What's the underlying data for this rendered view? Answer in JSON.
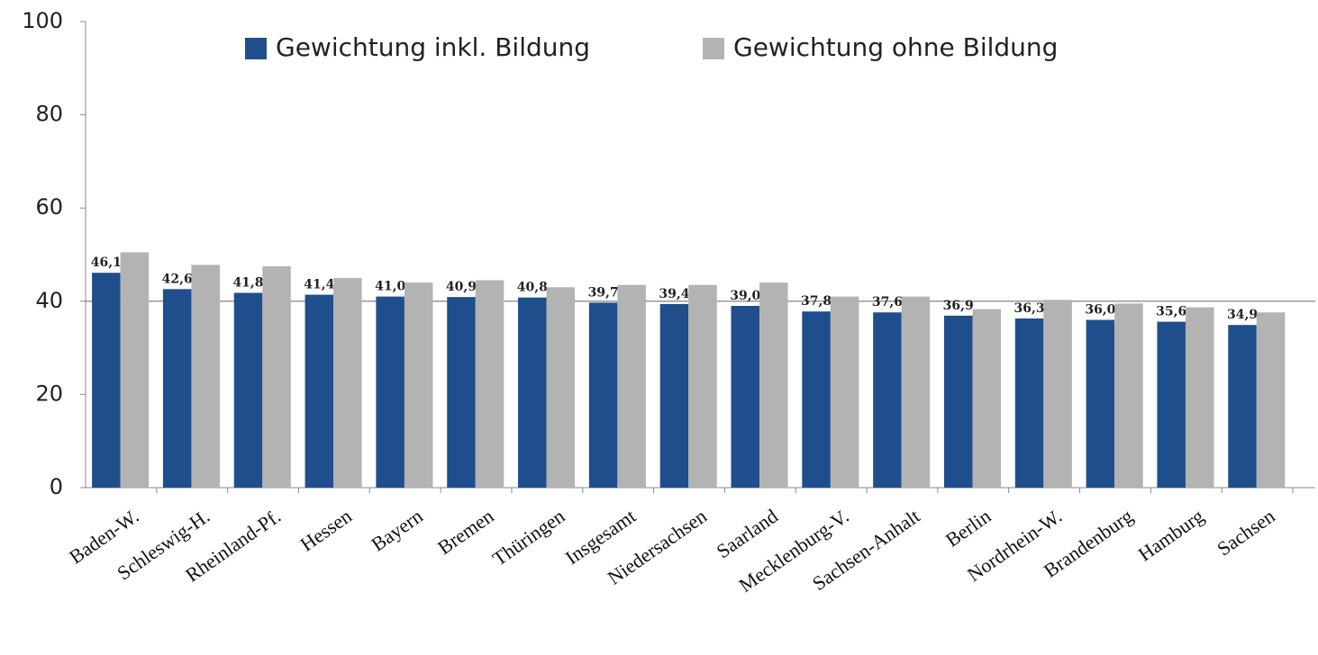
{
  "chart_data": {
    "type": "bar",
    "categories": [
      "Baden-W.",
      "Schleswig-H.",
      "Rheinland-Pf.",
      "Hessen",
      "Bayern",
      "Bremen",
      "Thüringen",
      "Insgesamt",
      "Niedersachsen",
      "Saarland",
      "Mecklenburg-V.",
      "Sachsen-Anhalt",
      "Berlin",
      "Nordrhein-W.",
      "Brandenburg",
      "Hamburg",
      "Sachsen"
    ],
    "series": [
      {
        "name": "Gewichtung inkl. Bildung",
        "color": "#1f4e8c",
        "values": [
          46.1,
          42.6,
          41.8,
          41.4,
          41.0,
          40.9,
          40.8,
          39.7,
          39.4,
          39.0,
          37.8,
          37.6,
          36.9,
          36.3,
          36.0,
          35.6,
          34.9
        ],
        "value_labels": [
          "46,1",
          "42,6",
          "41,8",
          "41,4",
          "41,0",
          "40,9",
          "40,8",
          "39,7",
          "39,4",
          "39,0",
          "37,8",
          "37,6",
          "36,9",
          "36,3",
          "36,0",
          "35,6",
          "34,9"
        ]
      },
      {
        "name": "Gewichtung ohne Bildung",
        "color": "#b3b3b3",
        "values": [
          50.5,
          47.8,
          47.5,
          45.0,
          44.0,
          44.5,
          43.0,
          43.5,
          43.5,
          44.0,
          41.0,
          41.0,
          38.3,
          40.3,
          39.5,
          38.7,
          37.6
        ]
      }
    ],
    "ylim": [
      0,
      100
    ],
    "yticks": [
      0,
      20,
      40,
      60,
      80,
      100
    ],
    "hline": 40
  }
}
